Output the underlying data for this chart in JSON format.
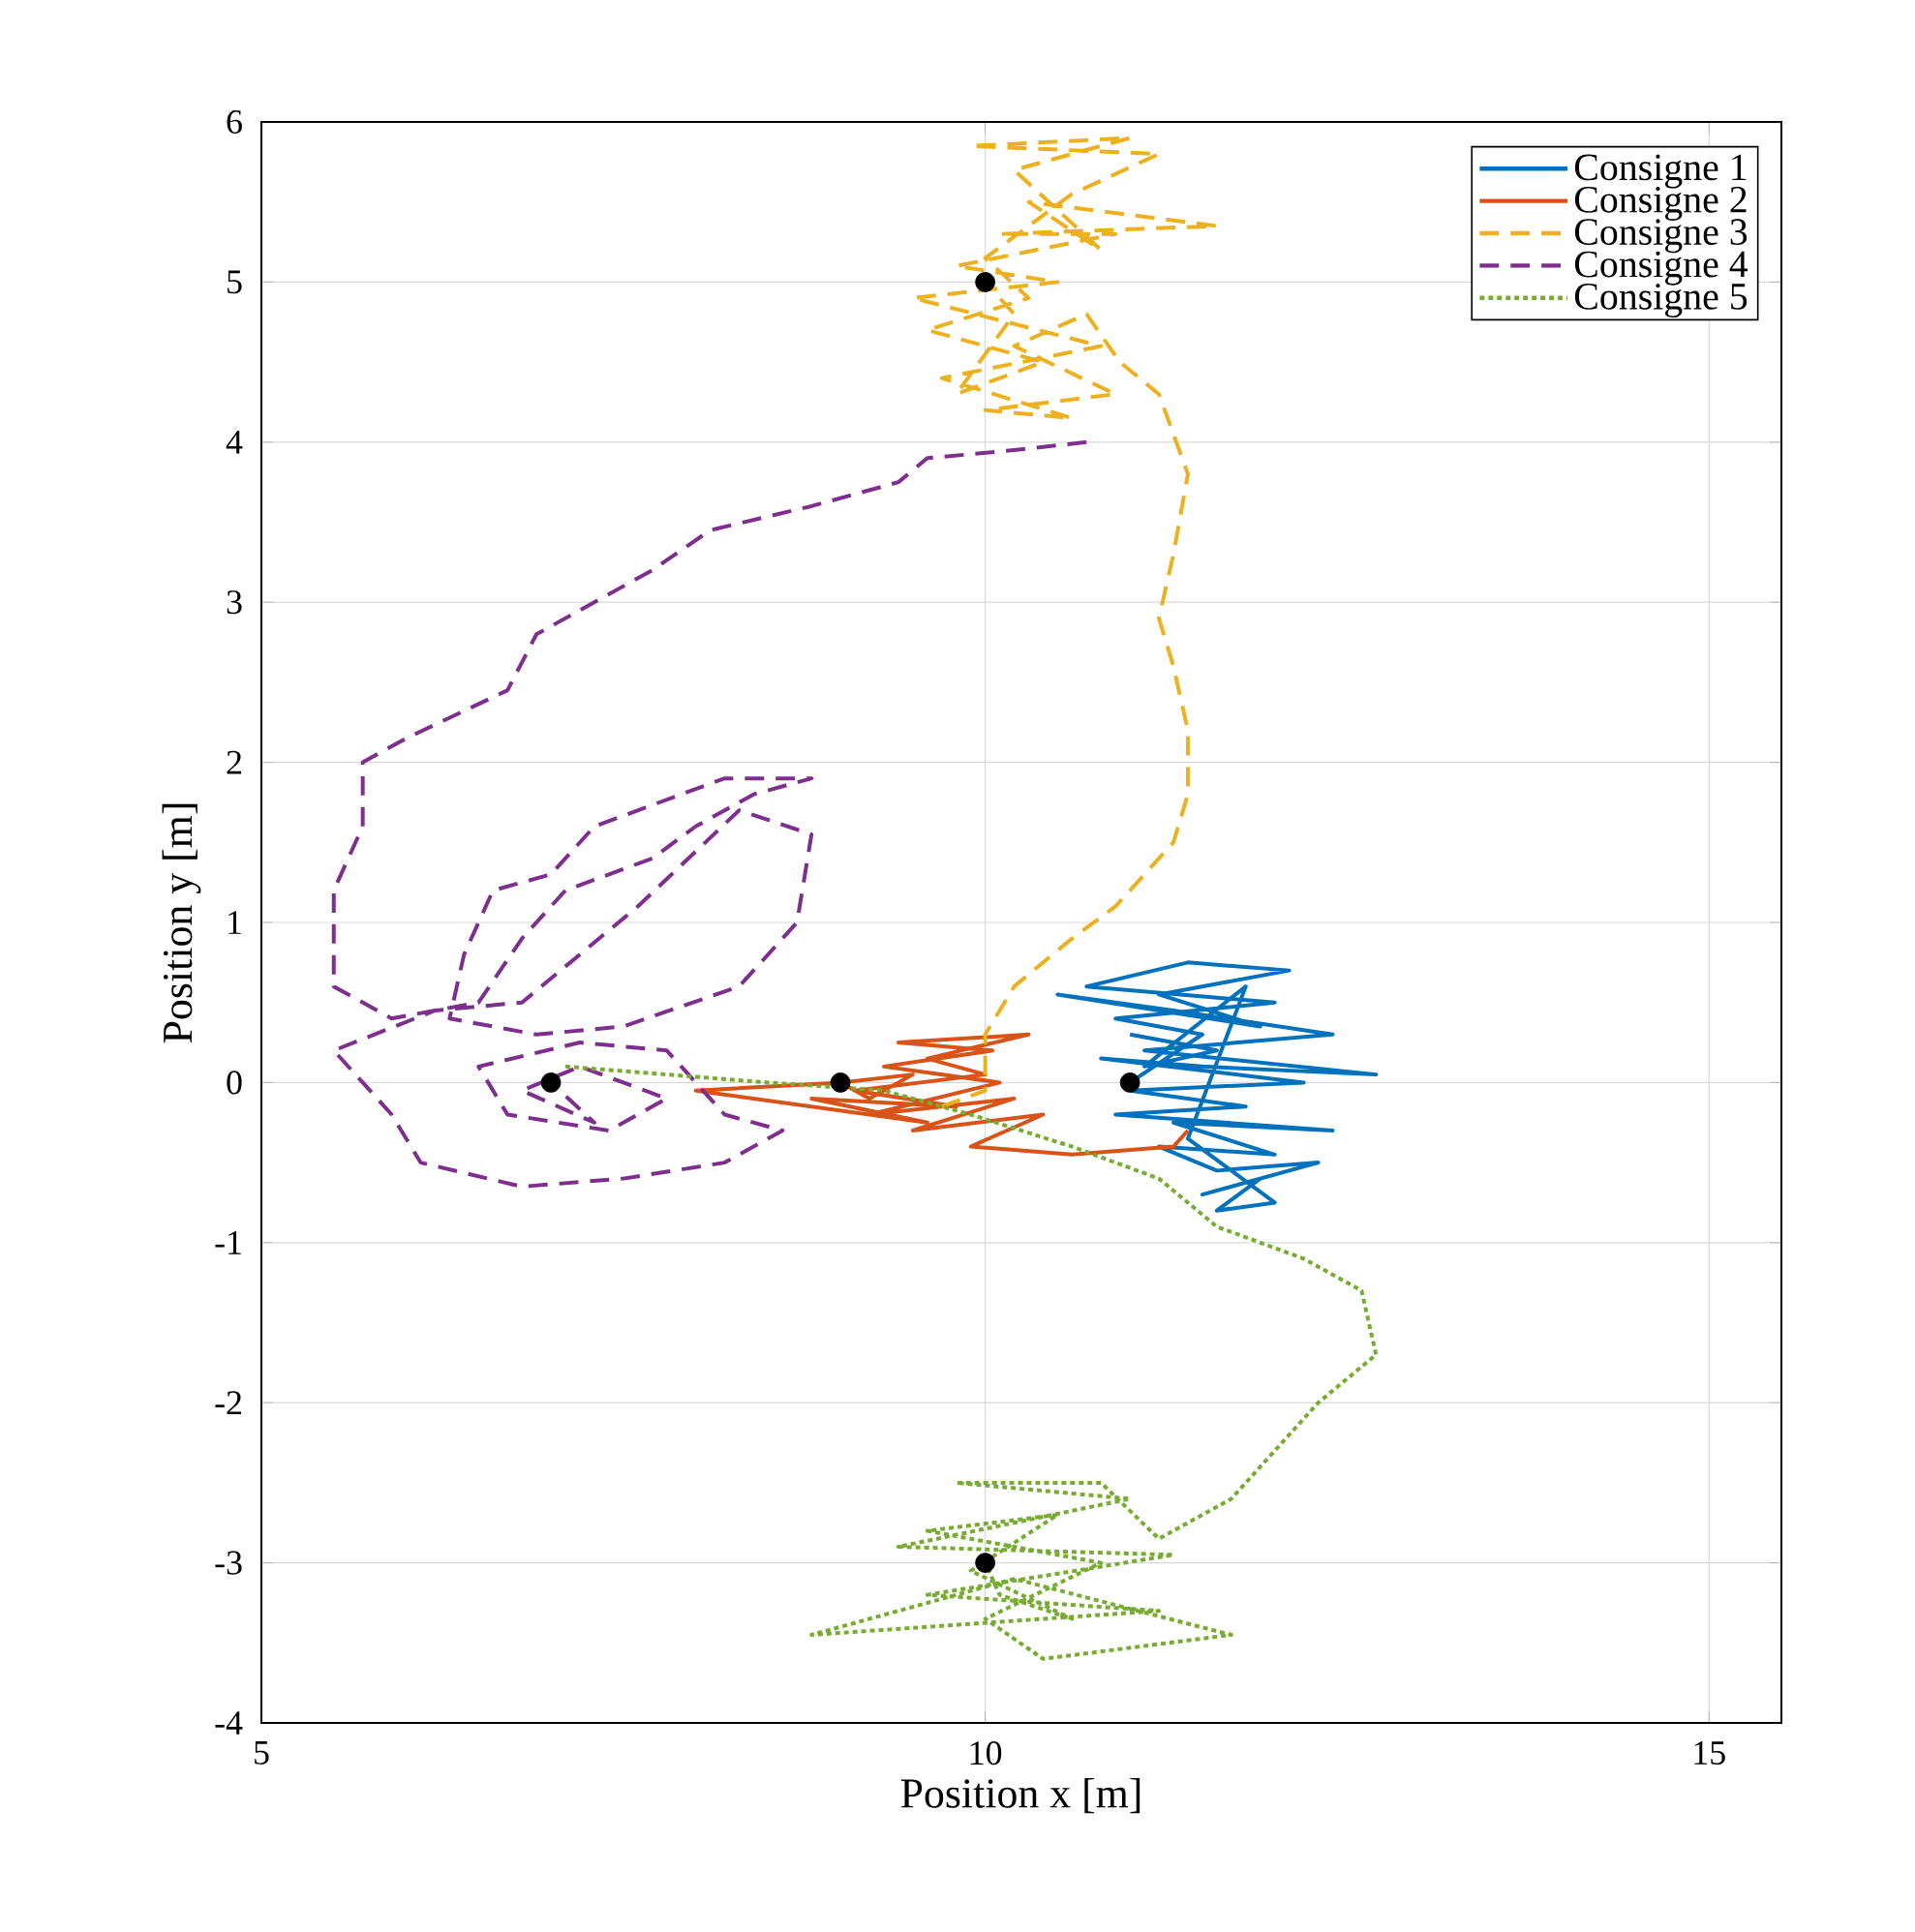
{
  "chart_data": {
    "type": "line",
    "xlabel": "Position x [m]",
    "ylabel": "Position y [m]",
    "xlim": [
      5,
      15.5
    ],
    "ylim": [
      -4,
      6
    ],
    "xticks": [
      5,
      10,
      15
    ],
    "yticks": [
      -4,
      -3,
      -2,
      -1,
      0,
      1,
      2,
      3,
      4,
      5,
      6
    ],
    "grid": true,
    "legend": "top right",
    "series": [
      {
        "name": "Consigne 1",
        "color": "#0072bd",
        "line_style": "solid",
        "marker": "none",
        "x": [
          11.0,
          11.5,
          10.9,
          12.0,
          10.7,
          11.4,
          12.1,
          11.2,
          11.9,
          10.5,
          11.3,
          12.4,
          11.1,
          12.7,
          11.5,
          10.8,
          12.2,
          11.0,
          11.8,
          10.9,
          12.4,
          11.3,
          12.0,
          11.2,
          11.6,
          12.3,
          11.5,
          11.9,
          11.6,
          12.0,
          11.4,
          11.8,
          11.1,
          11.6,
          11.0
        ],
        "values": [
          0.0,
          0.3,
          0.4,
          0.5,
          0.6,
          0.75,
          0.7,
          0.55,
          0.35,
          0.55,
          0.45,
          0.3,
          0.2,
          0.05,
          0.1,
          0.15,
          0.0,
          -0.05,
          -0.15,
          -0.2,
          -0.3,
          -0.25,
          -0.45,
          -0.4,
          -0.55,
          -0.5,
          -0.7,
          -0.6,
          -0.8,
          -0.75,
          -0.35,
          0.6,
          0.1,
          0.2,
          0.3
        ]
      },
      {
        "name": "Consigne 2",
        "color": "#d95319",
        "line_style": "solid",
        "marker": "none",
        "x": [
          11.4,
          11.3,
          10.6,
          9.9,
          10.4,
          9.5,
          10.2,
          9.2,
          10.1,
          9.3,
          10.05,
          9.4,
          10.3,
          9.6,
          10.0,
          9.1,
          9.8,
          8.8,
          9.6,
          8.0,
          9.0,
          9.5,
          9.2,
          9.0
        ],
        "values": [
          -0.3,
          -0.4,
          -0.45,
          -0.4,
          -0.2,
          -0.3,
          -0.1,
          -0.2,
          0.0,
          0.1,
          0.2,
          0.25,
          0.3,
          0.15,
          0.05,
          -0.05,
          -0.15,
          -0.1,
          -0.25,
          -0.05,
          0.0,
          0.05,
          -0.1,
          0.0
        ]
      },
      {
        "name": "Consigne 3",
        "color": "#edb120",
        "line_style": "dashed",
        "marker": "none",
        "x": [
          9.7,
          10.0,
          10.0,
          10.2,
          10.6,
          10.9,
          11.3,
          11.4,
          11.4,
          11.3,
          11.2,
          11.3,
          11.4,
          11.2,
          10.93,
          10.7,
          10.2,
          10.9,
          10.0,
          10.6,
          9.7,
          10.8,
          9.5,
          10.5,
          9.8,
          10.9,
          10.1,
          11.6,
          10.3,
          10.8,
          10.2,
          11.0,
          9.9,
          11.2,
          10.6,
          10.0,
          10.3,
          9.6,
          10.4,
          9.8,
          10.2,
          10.0
        ],
        "values": [
          -0.15,
          -0.05,
          0.3,
          0.6,
          0.9,
          1.1,
          1.5,
          1.8,
          2.2,
          2.6,
          2.9,
          3.3,
          3.8,
          4.3,
          4.5,
          4.8,
          4.6,
          4.3,
          4.2,
          4.15,
          4.4,
          4.6,
          4.9,
          5.0,
          5.1,
          5.3,
          5.3,
          5.35,
          5.5,
          5.2,
          5.7,
          5.9,
          5.85,
          5.8,
          5.55,
          5.15,
          4.9,
          4.7,
          4.5,
          4.3,
          4.8,
          5.0
        ]
      },
      {
        "name": "Consigne 4",
        "color": "#7e2f8e",
        "line_style": "dashed",
        "marker": "none",
        "x": [
          10.7,
          10.2,
          9.6,
          9.4,
          8.8,
          8.1,
          7.7,
          7.2,
          6.9,
          6.7,
          6.0,
          5.7,
          5.7,
          5.5,
          5.5,
          5.9,
          6.5,
          6.8,
          7.1,
          7.7,
          8.0,
          8.4,
          8.8,
          8.2,
          7.3,
          7.0,
          6.6,
          6.4,
          6.3,
          6.9,
          7.5,
          8.3,
          8.7,
          8.8,
          8.3,
          7.6,
          6.8,
          6.2,
          5.5,
          5.9,
          6.1,
          6.8,
          7.5,
          8.2,
          8.6,
          8.2,
          7.8,
          7.2,
          6.5,
          6.7,
          7.4,
          7.8,
          7.2,
          6.8,
          7.3,
          7.0
        ],
        "values": [
          4.0,
          3.95,
          3.9,
          3.75,
          3.6,
          3.45,
          3.2,
          2.95,
          2.8,
          2.45,
          2.15,
          2.0,
          1.6,
          1.2,
          0.6,
          0.4,
          0.5,
          0.9,
          1.2,
          1.4,
          1.6,
          1.8,
          1.9,
          1.9,
          1.6,
          1.3,
          1.2,
          0.8,
          0.4,
          0.3,
          0.35,
          0.6,
          1.0,
          1.55,
          1.7,
          1.1,
          0.5,
          0.45,
          0.2,
          -0.2,
          -0.5,
          -0.65,
          -0.6,
          -0.5,
          -0.3,
          -0.2,
          0.2,
          0.25,
          0.1,
          -0.2,
          -0.3,
          -0.1,
          0.1,
          -0.05,
          -0.25,
          0.0
        ]
      },
      {
        "name": "Consigne 5",
        "color": "#77ac30",
        "line_style": "dotted",
        "marker": "none",
        "x": [
          7.1,
          7.8,
          8.5,
          9.3,
          9.9,
          10.6,
          11.2,
          11.6,
          12.2,
          12.6,
          12.7,
          12.3,
          12.0,
          11.7,
          11.2,
          10.8,
          9.8,
          11.0,
          9.4,
          11.3,
          9.6,
          11.2,
          8.8,
          10.2,
          11.7,
          10.4,
          10.0,
          10.8,
          9.6,
          10.5,
          9.9,
          10.6,
          10.1,
          10.0
        ],
        "values": [
          0.1,
          0.05,
          0.0,
          -0.05,
          -0.2,
          -0.4,
          -0.6,
          -0.9,
          -1.1,
          -1.3,
          -1.7,
          -2.0,
          -2.3,
          -2.6,
          -2.85,
          -2.5,
          -2.5,
          -2.6,
          -2.9,
          -2.95,
          -3.2,
          -3.3,
          -3.45,
          -3.1,
          -3.45,
          -3.6,
          -3.35,
          -3.0,
          -2.8,
          -2.7,
          -3.05,
          -3.35,
          -3.2,
          -3.0
        ]
      },
      {
        "type": "scatter",
        "color": "#000000",
        "marker": "circle",
        "x": [
          11,
          9,
          10,
          7,
          10
        ],
        "values": [
          0,
          0,
          5,
          0,
          -3
        ]
      }
    ]
  }
}
